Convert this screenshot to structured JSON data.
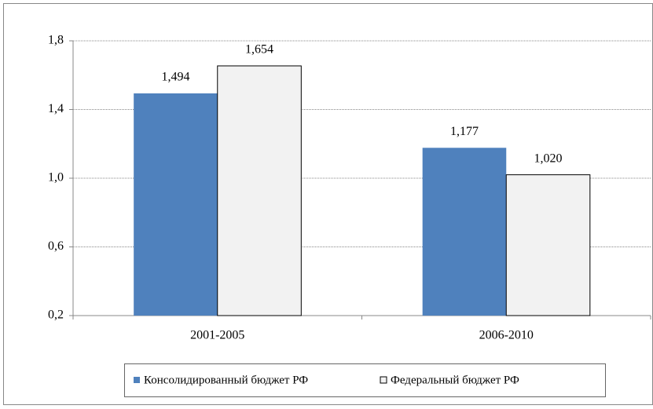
{
  "chart_data": {
    "type": "bar",
    "categories": [
      "2001-2005",
      "2006-2010"
    ],
    "series": [
      {
        "name": "Консолидированный бюджет РФ",
        "color": "#4f81bd",
        "values": [
          1.494,
          1.177
        ],
        "value_labels": [
          "1,494",
          "1,177"
        ]
      },
      {
        "name": "Федеральный бюджет РФ",
        "color": "#f2f2f2",
        "values": [
          1.654,
          1.02
        ],
        "value_labels": [
          "1,654",
          "1,020"
        ]
      }
    ],
    "ylim": [
      0.2,
      1.8
    ],
    "yticks": [
      {
        "value": 0.2,
        "label": "0,2"
      },
      {
        "value": 0.6,
        "label": "0,6"
      },
      {
        "value": 1.0,
        "label": "1,0"
      },
      {
        "value": 1.4,
        "label": "1,4"
      },
      {
        "value": 1.8,
        "label": "1,8"
      }
    ],
    "grid": true,
    "legend": "bottom"
  }
}
